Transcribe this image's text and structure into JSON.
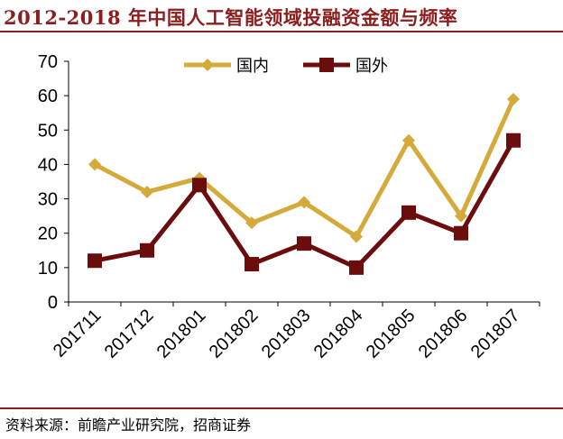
{
  "header": {
    "title": "2012-2018 年中国人工智能领域投融资金额与频率"
  },
  "footer": {
    "source": "资料来源：前瞻产业研究院，招商证券"
  },
  "chart_data": {
    "type": "line",
    "title": "2012-2018 年中国人工智能领域投融资金额与频率",
    "categories": [
      "201711",
      "201712",
      "201801",
      "201802",
      "201803",
      "201804",
      "201805",
      "201806",
      "201807"
    ],
    "series": [
      {
        "name": "国内",
        "values": [
          40,
          32,
          36,
          23,
          29,
          19,
          47,
          25,
          59
        ],
        "color": "#d4aa3a",
        "marker": "diamond"
      },
      {
        "name": "国外",
        "values": [
          12,
          15,
          34,
          11,
          17,
          10,
          26,
          20,
          47
        ],
        "color": "#6b0d0d",
        "marker": "square"
      }
    ],
    "ylim": [
      0,
      70
    ],
    "yticks": [
      0,
      10,
      20,
      30,
      40,
      50,
      60,
      70
    ],
    "grid": false,
    "legend": "top-center"
  }
}
